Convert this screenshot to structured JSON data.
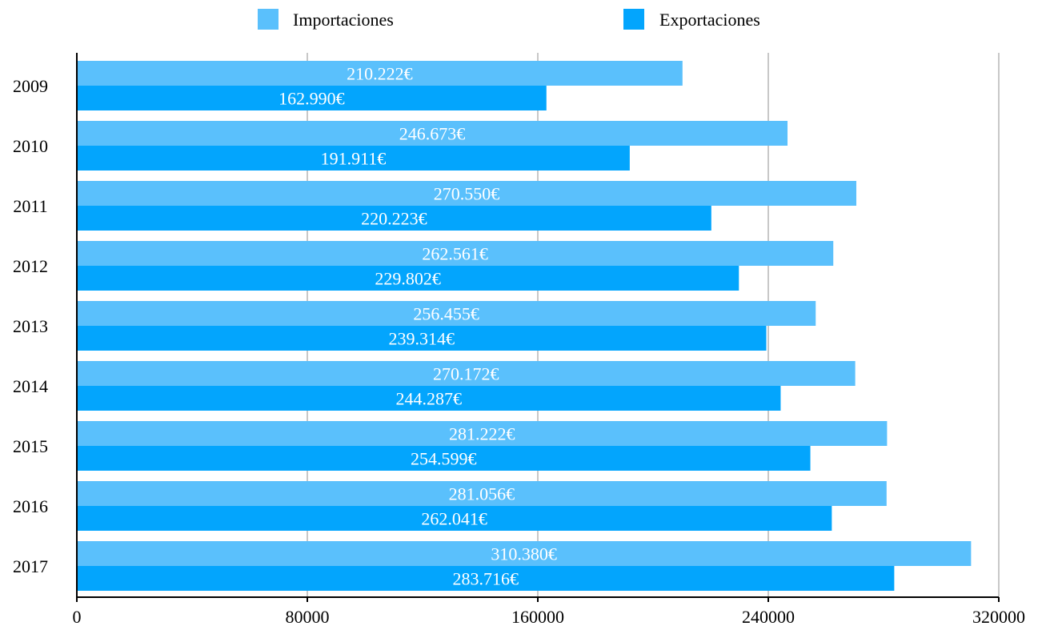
{
  "chart_data": {
    "type": "bar",
    "orientation": "horizontal",
    "categories": [
      "2009",
      "2010",
      "2011",
      "2012",
      "2013",
      "2014",
      "2015",
      "2016",
      "2017"
    ],
    "series": [
      {
        "name": "Importaciones",
        "color": "#5ac0fc",
        "values": [
          210222,
          246673,
          270550,
          262561,
          256455,
          270172,
          281222,
          281056,
          310380
        ],
        "labels": [
          "210.222€",
          "246.673€",
          "270.550€",
          "262.561€",
          "256.455€",
          "270.172€",
          "281.222€",
          "281.056€",
          "310.380€"
        ]
      },
      {
        "name": "Exportaciones",
        "color": "#03a5fd",
        "values": [
          162990,
          191911,
          220223,
          229802,
          239314,
          244287,
          254599,
          262041,
          283716
        ],
        "labels": [
          "162.990€",
          "191.911€",
          "220.223€",
          "229.802€",
          "239.314€",
          "244.287€",
          "254.599€",
          "262.041€",
          "283.716€"
        ]
      }
    ],
    "xlim": [
      0,
      320000
    ],
    "xticks": [
      "0",
      "80000",
      "160000",
      "240000",
      "320000"
    ],
    "grid": true,
    "legend": "top-center",
    "title": "",
    "xlabel": "",
    "ylabel": ""
  }
}
